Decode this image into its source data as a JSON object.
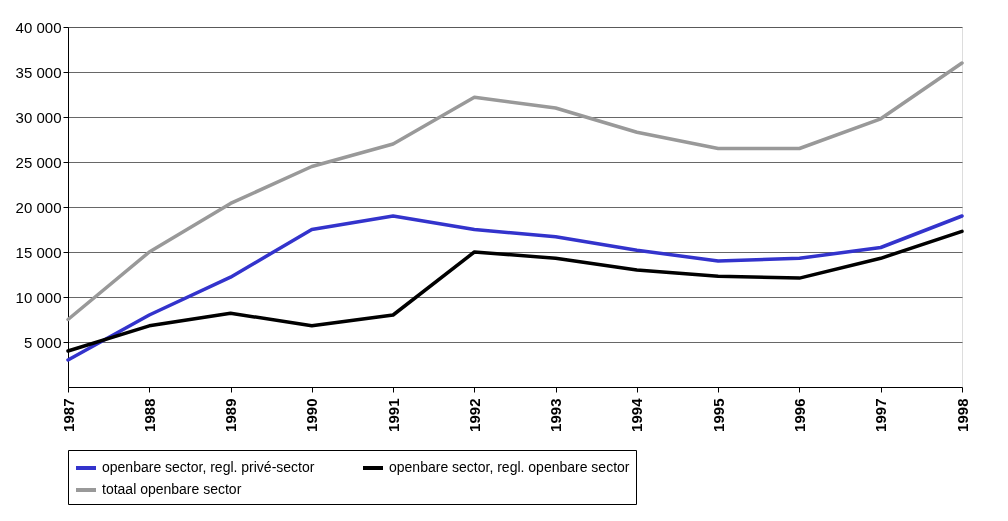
{
  "chart_data": {
    "type": "line",
    "categories": [
      "1987",
      "1988",
      "1989",
      "1990",
      "1991",
      "1992",
      "1993",
      "1994",
      "1995",
      "1996",
      "1997",
      "1998"
    ],
    "series": [
      {
        "name": "openbare sector, regl. privé-sector",
        "color": "#3333cc",
        "values": [
          3000,
          8000,
          12200,
          17500,
          19000,
          17500,
          16700,
          15200,
          14000,
          14300,
          15500,
          19000
        ]
      },
      {
        "name": "openbare sector, regl. openbare sector",
        "color": "#000000",
        "values": [
          4000,
          6800,
          8200,
          6800,
          8000,
          15000,
          14300,
          13000,
          12300,
          12100,
          14300,
          17300
        ]
      },
      {
        "name": "totaal openbare sector",
        "color": "#999999",
        "values": [
          7500,
          15000,
          20400,
          24500,
          27000,
          32200,
          31000,
          28300,
          26500,
          26500,
          29800,
          36000
        ]
      }
    ],
    "ylim": [
      0,
      40000
    ],
    "yticks": [
      {
        "value": 5000,
        "label": "5 000"
      },
      {
        "value": 10000,
        "label": "10 000"
      },
      {
        "value": 15000,
        "label": "15 000"
      },
      {
        "value": 20000,
        "label": "20 000"
      },
      {
        "value": 25000,
        "label": "25 000"
      },
      {
        "value": 30000,
        "label": "30 000"
      },
      {
        "value": 35000,
        "label": "35 000"
      },
      {
        "value": 40000,
        "label": "40 000"
      }
    ],
    "grid": "y",
    "legend": "bottom",
    "marker": "none",
    "line_style": "solid"
  }
}
